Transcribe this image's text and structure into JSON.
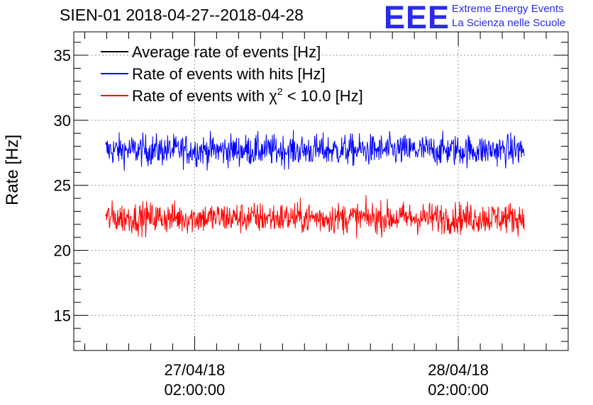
{
  "header": {
    "title": "SIEN-01 2018-04-27--2018-04-28",
    "logo_text": "EEE",
    "brand_line1": "Extreme Energy Events",
    "brand_line2": "La Scienza nelle Scuole"
  },
  "chart_data": {
    "type": "line",
    "ylabel": "Rate [Hz]",
    "ylim": [
      12.3,
      36.8
    ],
    "yticks": [
      "15",
      "20",
      "25",
      "30",
      "35"
    ],
    "xticks": [
      {
        "date": "27/04/18",
        "time": "02:00:00"
      },
      {
        "date": "28/04/18",
        "time": "02:00:00"
      }
    ],
    "grid": true,
    "legend_position": "top-left",
    "series": [
      {
        "name": "Average rate of events [Hz]",
        "color": "#000000",
        "values": []
      },
      {
        "name": "Rate of events with hits [Hz]",
        "color": "#0000ff",
        "mean": 27.7,
        "min": 25.1,
        "max": 30.3
      },
      {
        "name_prefix": "Rate of events with ",
        "name_chi": "χ",
        "name_sup": "2",
        "name_suffix": " < 10.0 [Hz]",
        "color": "#ff0000",
        "mean": 22.5,
        "min": 20.4,
        "max": 24.8
      }
    ],
    "x_range": [
      "2018-04-26 15:00",
      "2018-04-28 12:00"
    ]
  }
}
